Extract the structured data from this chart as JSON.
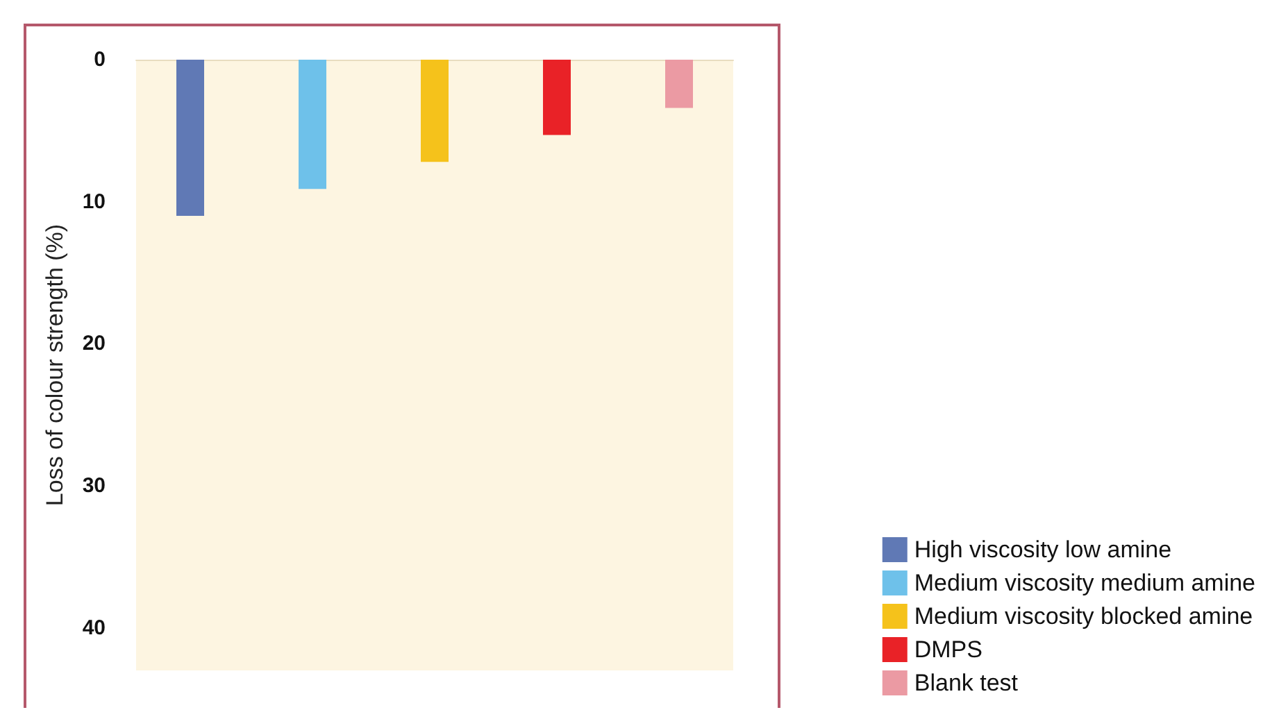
{
  "chart_data": {
    "type": "bar",
    "ylabel": "Loss of colour strength (%)",
    "categories": [
      null
    ],
    "series": [
      {
        "name": "High viscosity low amine",
        "color": "#6079b5",
        "values": [
          11.0
        ]
      },
      {
        "name": "Medium viscosity medium amine",
        "color": "#6ec1ea",
        "values": [
          9.1
        ]
      },
      {
        "name": "Medium viscosity blocked amine",
        "color": "#f5c21b",
        "values": [
          7.2
        ]
      },
      {
        "name": "DMPS",
        "color": "#e92227",
        "values": [
          5.3
        ]
      },
      {
        "name": "Blank test",
        "color": "#eb9aa3",
        "values": [
          3.4
        ]
      }
    ],
    "ylim": [
      43,
      0
    ],
    "yticks": [
      0,
      10,
      20,
      30,
      40
    ],
    "grid": false,
    "legend": "bottom right"
  }
}
